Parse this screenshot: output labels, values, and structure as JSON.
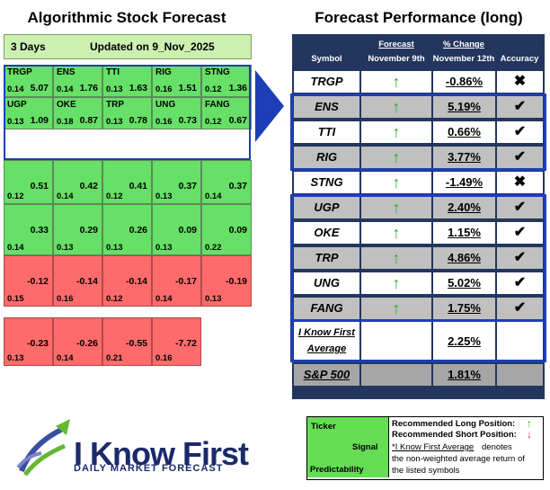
{
  "titles": {
    "left": "Algorithmic Stock Forecast",
    "right": "Forecast Performance (long)"
  },
  "forecast_header": {
    "days": "3 Days",
    "updated": "Updated on 9_Nov_2025"
  },
  "grid": [
    {
      "symbol": "TRGP",
      "signal": "5.07",
      "predictability": "0.14",
      "type": "pos"
    },
    {
      "symbol": "ENS",
      "signal": "1.76",
      "predictability": "0.14",
      "type": "pos"
    },
    {
      "symbol": "TTI",
      "signal": "1.63",
      "predictability": "0.13",
      "type": "pos"
    },
    {
      "symbol": "RIG",
      "signal": "1.51",
      "predictability": "0.16",
      "type": "pos"
    },
    {
      "symbol": "STNG",
      "signal": "1.36",
      "predictability": "0.12",
      "type": "pos"
    },
    {
      "symbol": "UGP",
      "signal": "1.09",
      "predictability": "0.13",
      "type": "pos"
    },
    {
      "symbol": "OKE",
      "signal": "0.87",
      "predictability": "0.18",
      "type": "pos"
    },
    {
      "symbol": "TRP",
      "signal": "0.78",
      "predictability": "0.13",
      "type": "pos"
    },
    {
      "symbol": "UNG",
      "signal": "0.73",
      "predictability": "0.16",
      "type": "pos"
    },
    {
      "symbol": "FANG",
      "signal": "0.67",
      "predictability": "0.12",
      "type": "pos"
    },
    {
      "symbol": "",
      "signal": "0.51",
      "predictability": "0.12",
      "type": "pos"
    },
    {
      "symbol": "",
      "signal": "0.42",
      "predictability": "0.14",
      "type": "pos"
    },
    {
      "symbol": "",
      "signal": "0.41",
      "predictability": "0.12",
      "type": "pos"
    },
    {
      "symbol": "",
      "signal": "0.37",
      "predictability": "0.13",
      "type": "pos"
    },
    {
      "symbol": "",
      "signal": "0.37",
      "predictability": "0.14",
      "type": "pos"
    },
    {
      "symbol": "",
      "signal": "0.33",
      "predictability": "0.14",
      "type": "pos"
    },
    {
      "symbol": "",
      "signal": "0.29",
      "predictability": "0.13",
      "type": "pos"
    },
    {
      "symbol": "",
      "signal": "0.26",
      "predictability": "0.13",
      "type": "pos"
    },
    {
      "symbol": "",
      "signal": "0.09",
      "predictability": "0.13",
      "type": "pos"
    },
    {
      "symbol": "",
      "signal": "0.09",
      "predictability": "0.22",
      "type": "pos"
    },
    {
      "symbol": "",
      "signal": "-0.12",
      "predictability": "0.15",
      "type": "neg"
    },
    {
      "symbol": "",
      "signal": "-0.14",
      "predictability": "0.16",
      "type": "neg"
    },
    {
      "symbol": "",
      "signal": "-0.14",
      "predictability": "0.12",
      "type": "neg"
    },
    {
      "symbol": "",
      "signal": "-0.17",
      "predictability": "0.14",
      "type": "neg"
    },
    {
      "symbol": "",
      "signal": "-0.19",
      "predictability": "0.13",
      "type": "neg"
    },
    {
      "symbol": "",
      "signal": "-0.23",
      "predictability": "0.13",
      "type": "neg"
    },
    {
      "symbol": "",
      "signal": "-0.26",
      "predictability": "0.14",
      "type": "neg"
    },
    {
      "symbol": "",
      "signal": "-0.55",
      "predictability": "0.21",
      "type": "neg"
    },
    {
      "symbol": "",
      "signal": "-7.72",
      "predictability": "0.16",
      "type": "neg"
    }
  ],
  "table_header": {
    "symbol": "Symbol",
    "forecast": "Forecast",
    "forecast_date": "November 9th",
    "change": "% Change",
    "change_date": "November 12th",
    "accuracy": "Accuracy"
  },
  "rows": [
    {
      "symbol": "TRGP",
      "change": "-0.86%",
      "accuracy": "✖",
      "shade": "white"
    },
    {
      "symbol": "ENS",
      "change": "5.19%",
      "accuracy": "✔",
      "shade": "grey"
    },
    {
      "symbol": "TTI",
      "change": "0.66%",
      "accuracy": "✔",
      "shade": "white"
    },
    {
      "symbol": "RIG",
      "change": "3.77%",
      "accuracy": "✔",
      "shade": "grey"
    },
    {
      "symbol": "STNG",
      "change": "-1.49%",
      "accuracy": "✖",
      "shade": "white"
    },
    {
      "symbol": "UGP",
      "change": "2.40%",
      "accuracy": "✔",
      "shade": "grey"
    },
    {
      "symbol": "OKE",
      "change": "1.15%",
      "accuracy": "✔",
      "shade": "white"
    },
    {
      "symbol": "TRP",
      "change": "4.86%",
      "accuracy": "✔",
      "shade": "grey"
    },
    {
      "symbol": "UNG",
      "change": "5.02%",
      "accuracy": "✔",
      "shade": "white"
    },
    {
      "symbol": "FANG",
      "change": "1.75%",
      "accuracy": "✔",
      "shade": "grey"
    }
  ],
  "average": {
    "label_line1": "I Know First",
    "label_line2": "Average",
    "value": "2.25%"
  },
  "sp500": {
    "label": "S&P 500",
    "value": "1.81%"
  },
  "legend": {
    "ticker": "Ticker",
    "signal": "Signal",
    "predictability": "Predictability",
    "long": "Recommended Long Position:",
    "short": "Recommended Short Position:",
    "note_link": "*I Know First Average",
    "note_rest1": " denotes",
    "note_line2": "the non-weighted average return of",
    "note_line3": "the listed symbols",
    "long_arrow": "↑",
    "short_arrow": "↓"
  },
  "logo": {
    "name": "I Know First",
    "tagline": "DAILY MARKET FORECAST"
  },
  "colors": {
    "positive": "#66e066",
    "negative": "#ff6b6b",
    "navy": "#23365e",
    "frame": "#1c3fb7"
  }
}
